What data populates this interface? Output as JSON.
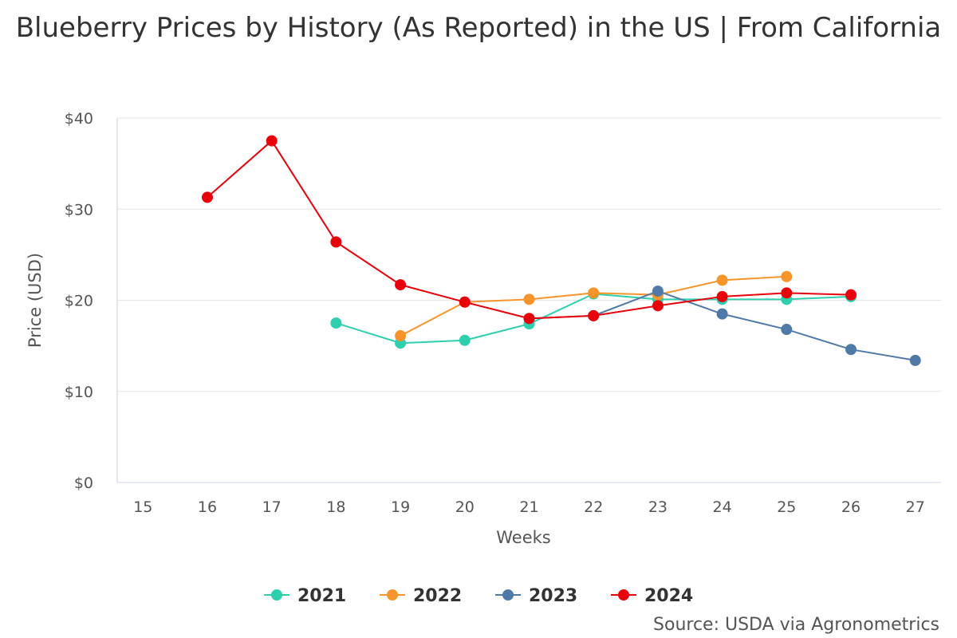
{
  "chart_data": {
    "type": "line",
    "title": "Blueberry Prices by History (As Reported) in the US | From California",
    "xlabel": "Weeks",
    "ylabel": "Price (USD)",
    "x_ticks": [
      15,
      16,
      17,
      18,
      19,
      20,
      21,
      22,
      23,
      24,
      25,
      26,
      27
    ],
    "xlim": [
      14.6,
      27.4
    ],
    "ylim": [
      0,
      40
    ],
    "y_ticks": [
      0,
      10,
      20,
      30,
      40
    ],
    "y_tick_labels": [
      "$0",
      "$10",
      "$20",
      "$30",
      "$40"
    ],
    "grid": true,
    "legend_position": "bottom-center",
    "series": [
      {
        "name": "2021",
        "color": "#2ecfad",
        "x": [
          18,
          19,
          20,
          21,
          22,
          23,
          24,
          25,
          26
        ],
        "values": [
          17.5,
          15.3,
          15.6,
          17.4,
          20.7,
          20.1,
          20.1,
          20.1,
          20.4
        ]
      },
      {
        "name": "2022",
        "color": "#f7952a",
        "x": [
          19,
          20,
          21,
          22,
          23,
          24,
          25
        ],
        "values": [
          16.1,
          19.8,
          20.1,
          20.8,
          20.6,
          22.2,
          22.6
        ]
      },
      {
        "name": "2023",
        "color": "#4f7aa8",
        "x": [
          21,
          22,
          23,
          24,
          25,
          26,
          27
        ],
        "values": [
          18.0,
          18.3,
          21.0,
          18.5,
          16.8,
          14.6,
          13.4
        ]
      },
      {
        "name": "2024",
        "color": "#e8000b",
        "x": [
          16,
          17,
          18,
          19,
          20,
          21,
          22,
          23,
          24,
          25,
          26
        ],
        "values": [
          31.3,
          37.5,
          26.4,
          21.7,
          19.8,
          18.0,
          18.3,
          19.4,
          20.4,
          20.8,
          20.6
        ]
      }
    ],
    "source": "Source: USDA via Agronometrics"
  }
}
